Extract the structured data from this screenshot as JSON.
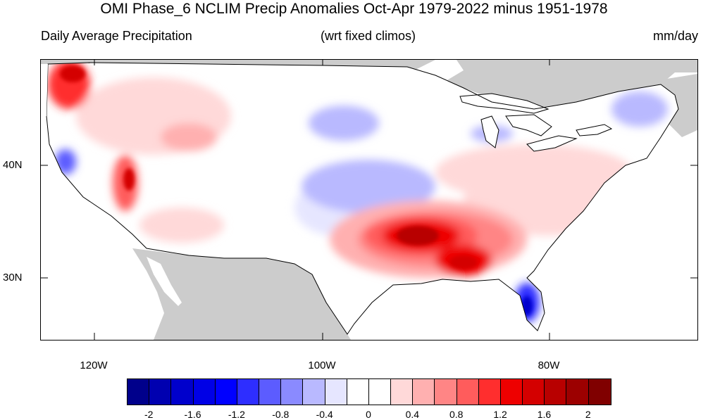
{
  "header": {
    "title": "OMI Phase_6 NCLIM Precip Anomalies Oct-Apr 1979-2022 minus 1951-1978",
    "left_label": "Daily Average Precipitation",
    "center_label": "(wrt fixed climos)",
    "units": "mm/day"
  },
  "axes": {
    "y_ticks": [
      "40N",
      "30N"
    ],
    "x_ticks": [
      "120W",
      "100W",
      "80W"
    ]
  },
  "colorbar": {
    "labels": [
      "-2",
      "-1.6",
      "-1.2",
      "-0.8",
      "-0.4",
      "0",
      "0.4",
      "0.8",
      "1.2",
      "1.6",
      "2"
    ],
    "colors": [
      "#00008b",
      "#0000b0",
      "#0000cc",
      "#0000e6",
      "#0000ff",
      "#2e2eff",
      "#5c5cff",
      "#8a8aff",
      "#b9b9ff",
      "#e6e6ff",
      "#ffffff",
      "#ffffff",
      "#ffd9d9",
      "#ffb0b0",
      "#ff8585",
      "#ff5c5c",
      "#ff2e2e",
      "#ee0000",
      "#d40000",
      "#b80000",
      "#9c0000",
      "#800000"
    ]
  },
  "map": {
    "land_outside_color": "#cccccc",
    "water_color": "#ffffff",
    "border_color": "#000000"
  }
}
